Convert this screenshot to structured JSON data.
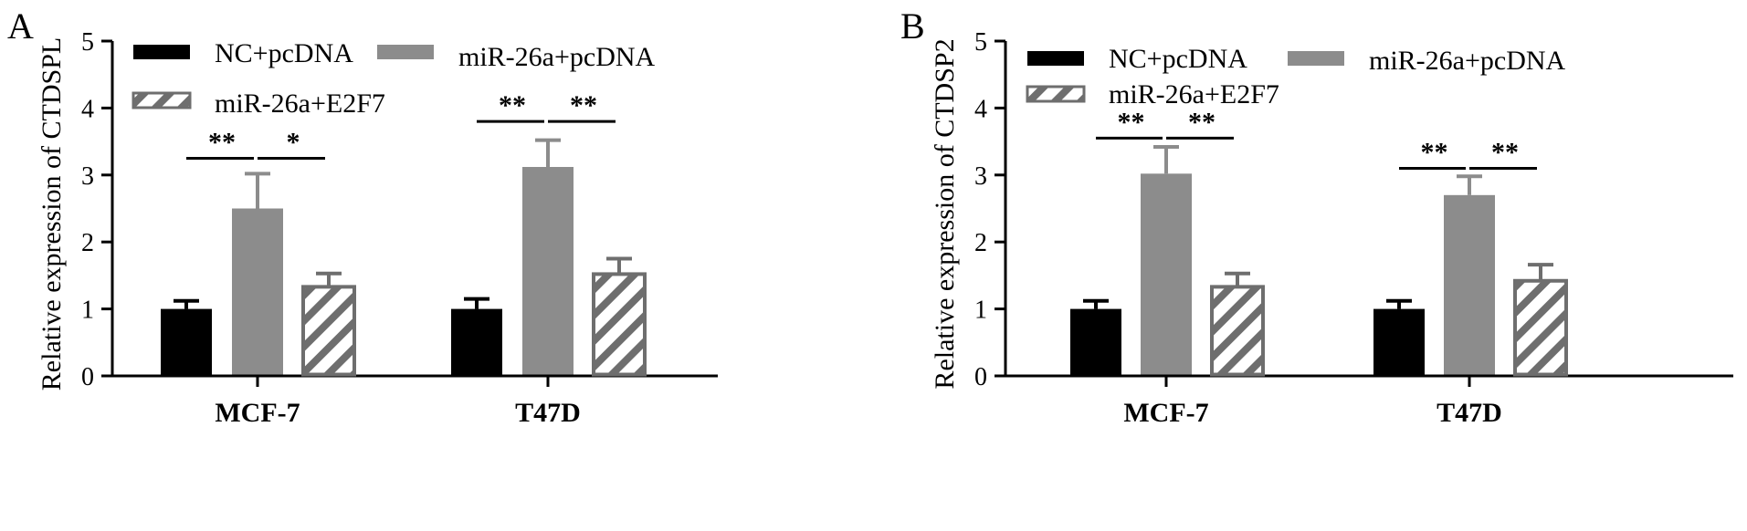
{
  "colors": {
    "nc_pcdna": "#000000",
    "mir26a_pcdna": "#8c8c8c",
    "mir26a_e2f7_stroke": "#6e6e6e",
    "mir26a_e2f7_fill": "#ffffff"
  },
  "chart_data": [
    {
      "type": "bar",
      "panel_label": "A",
      "ylabel": "Relative expression of  CTDSPL",
      "ylim": [
        0,
        5
      ],
      "yticks": [
        "0",
        "1",
        "2",
        "3",
        "4",
        "5"
      ],
      "categories": [
        "MCF-7",
        "T47D"
      ],
      "legend": [
        "NC+pcDNA",
        "miR-26a+pcDNA",
        "miR-26a+E2F7"
      ],
      "series": [
        {
          "name": "NC+pcDNA",
          "style": "solid-black",
          "values": [
            1.0,
            1.0
          ],
          "errors": [
            0.12,
            0.15
          ]
        },
        {
          "name": "miR-26a+pcDNA",
          "style": "solid-gray",
          "values": [
            2.5,
            3.12
          ],
          "errors": [
            0.52,
            0.4
          ]
        },
        {
          "name": "miR-26a+E2F7",
          "style": "hatched",
          "values": [
            1.33,
            1.52
          ],
          "errors": [
            0.2,
            0.23
          ]
        }
      ],
      "significance": [
        {
          "category": "MCF-7",
          "from": 0,
          "to": 1,
          "label": "**",
          "y": 3.25
        },
        {
          "category": "MCF-7",
          "from": 1,
          "to": 2,
          "label": "*",
          "y": 3.25
        },
        {
          "category": "T47D",
          "from": 0,
          "to": 1,
          "label": "**",
          "y": 3.8
        },
        {
          "category": "T47D",
          "from": 1,
          "to": 2,
          "label": "**",
          "y": 3.8
        }
      ]
    },
    {
      "type": "bar",
      "panel_label": "B",
      "ylabel": "Relative expression of  CTDSP2",
      "ylim": [
        0,
        5
      ],
      "yticks": [
        "0",
        "1",
        "2",
        "3",
        "4",
        "5"
      ],
      "categories": [
        "MCF-7",
        "T47D"
      ],
      "legend": [
        "NC+pcDNA",
        "miR-26a+pcDNA",
        "miR-26a+E2F7"
      ],
      "series": [
        {
          "name": "NC+pcDNA",
          "style": "solid-black",
          "values": [
            1.0,
            1.0
          ],
          "errors": [
            0.12,
            0.12
          ]
        },
        {
          "name": "miR-26a+pcDNA",
          "style": "solid-gray",
          "values": [
            3.02,
            2.7
          ],
          "errors": [
            0.4,
            0.28
          ]
        },
        {
          "name": "miR-26a+E2F7",
          "style": "hatched",
          "values": [
            1.33,
            1.42
          ],
          "errors": [
            0.2,
            0.24
          ]
        }
      ],
      "significance": [
        {
          "category": "MCF-7",
          "from": 0,
          "to": 1,
          "label": "**",
          "y": 3.55
        },
        {
          "category": "MCF-7",
          "from": 1,
          "to": 2,
          "label": "**",
          "y": 3.55
        },
        {
          "category": "T47D",
          "from": 0,
          "to": 1,
          "label": "**",
          "y": 3.1
        },
        {
          "category": "T47D",
          "from": 1,
          "to": 2,
          "label": "**",
          "y": 3.1
        }
      ]
    }
  ]
}
